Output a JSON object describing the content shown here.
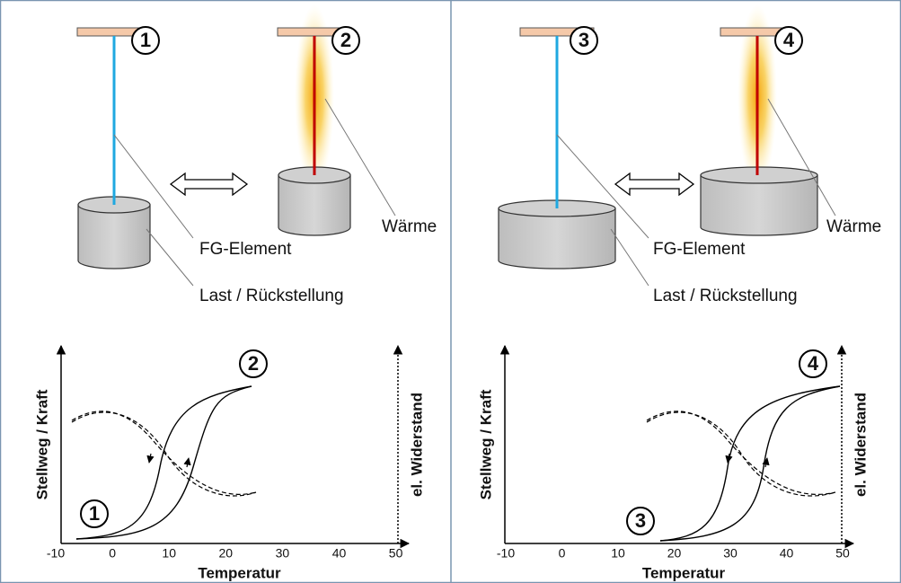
{
  "panels": [
    {
      "markers": [
        "1",
        "2"
      ],
      "labels": {
        "fg_element": "FG-Element",
        "heat": "Wärme",
        "load": "Last / Rückstellung"
      },
      "graph": {
        "y_label": "Stellweg / Kraft",
        "y2_label": "el. Widerstand",
        "x_label": "Temperatur",
        "xticks": [
          -10,
          0,
          10,
          20,
          30,
          40,
          50
        ]
      }
    },
    {
      "markers": [
        "3",
        "4"
      ],
      "labels": {
        "fg_element": "FG-Element",
        "heat": "Wärme",
        "load": "Last / Rückstellung"
      },
      "graph": {
        "y_label": "Stellweg / Kraft",
        "y2_label": "el. Widerstand",
        "x_label": "Temperatur",
        "xticks": [
          -10,
          0,
          10,
          20,
          30,
          40,
          50
        ]
      }
    }
  ]
}
